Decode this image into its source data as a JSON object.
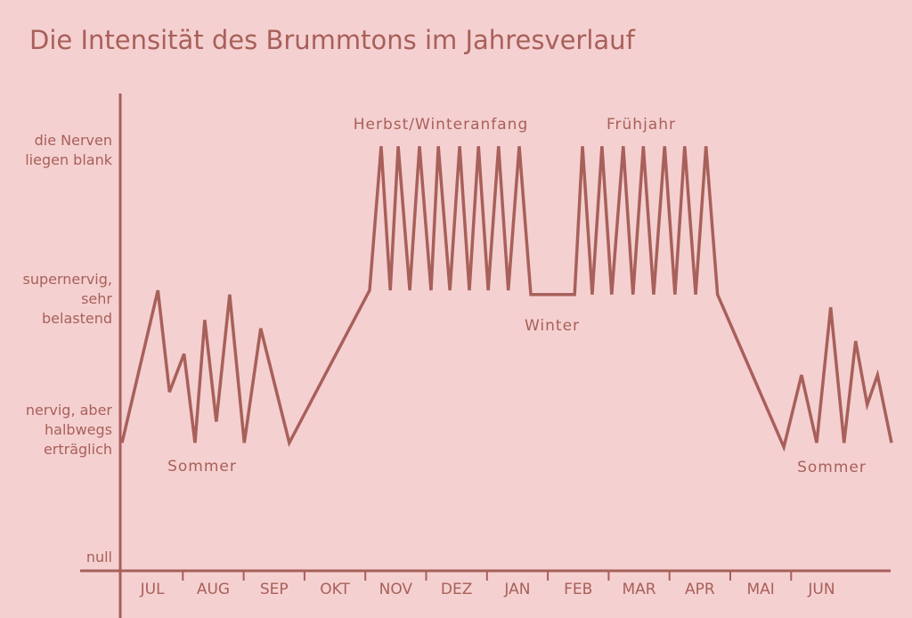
{
  "chart_data": {
    "type": "line",
    "title": "Die Intensität des Brummtons im Jahresverlauf",
    "categories": [
      "JUL",
      "AUG",
      "SEP",
      "OKT",
      "NOV",
      "DEZ",
      "JAN",
      "FEB",
      "MAR",
      "APR",
      "MAI",
      "JUN"
    ],
    "xlim": [
      0,
      12.65
    ],
    "ylim": [
      -0.3,
      10
    ],
    "yticks": [
      {
        "value": 0,
        "label": "null"
      },
      {
        "value": 3,
        "label": "nervig, aber\nhalbwegs\nerträglich"
      },
      {
        "value": 6.1,
        "label": "supernervig,\nsehr\nbelastend"
      },
      {
        "value": 9.6,
        "label": "die Nerven\nliegen blank"
      }
    ],
    "color": "#a8605a",
    "x": [
      0,
      0.59,
      0.78,
      1.02,
      1.2,
      1.36,
      1.55,
      1.77,
      2.01,
      2.28,
      2.75,
      4.07,
      4.26,
      4.41,
      4.54,
      4.73,
      4.89,
      5.08,
      5.2,
      5.39,
      5.55,
      5.71,
      5.86,
      6.02,
      6.19,
      6.35,
      6.53,
      6.72,
      7.44,
      7.57,
      7.73,
      7.89,
      8.05,
      8.24,
      8.4,
      8.57,
      8.74,
      8.92,
      9.09,
      9.25,
      9.43,
      9.6,
      9.79,
      10.88,
      11.17,
      11.42,
      11.65,
      11.87,
      12.06,
      12.25,
      12.42,
      12.65
    ],
    "values": [
      2.7,
      6.3,
      3.9,
      4.8,
      2.7,
      5.6,
      3.2,
      6.2,
      2.7,
      5.4,
      2.7,
      6.3,
      9.7,
      6.3,
      9.7,
      6.3,
      9.7,
      6.3,
      9.7,
      6.3,
      9.7,
      6.3,
      9.7,
      6.3,
      9.7,
      6.3,
      9.7,
      6.2,
      6.2,
      9.7,
      6.2,
      9.7,
      6.2,
      9.7,
      6.2,
      9.7,
      6.2,
      9.7,
      6.2,
      9.7,
      6.2,
      9.7,
      6.2,
      2.6,
      4.3,
      2.7,
      5.9,
      2.7,
      5.1,
      3.6,
      4.3,
      2.7
    ],
    "annotations": [
      "Herbst/Winteranfang",
      "Frühjahr",
      "Winter",
      "Sommer",
      "Sommer"
    ]
  }
}
